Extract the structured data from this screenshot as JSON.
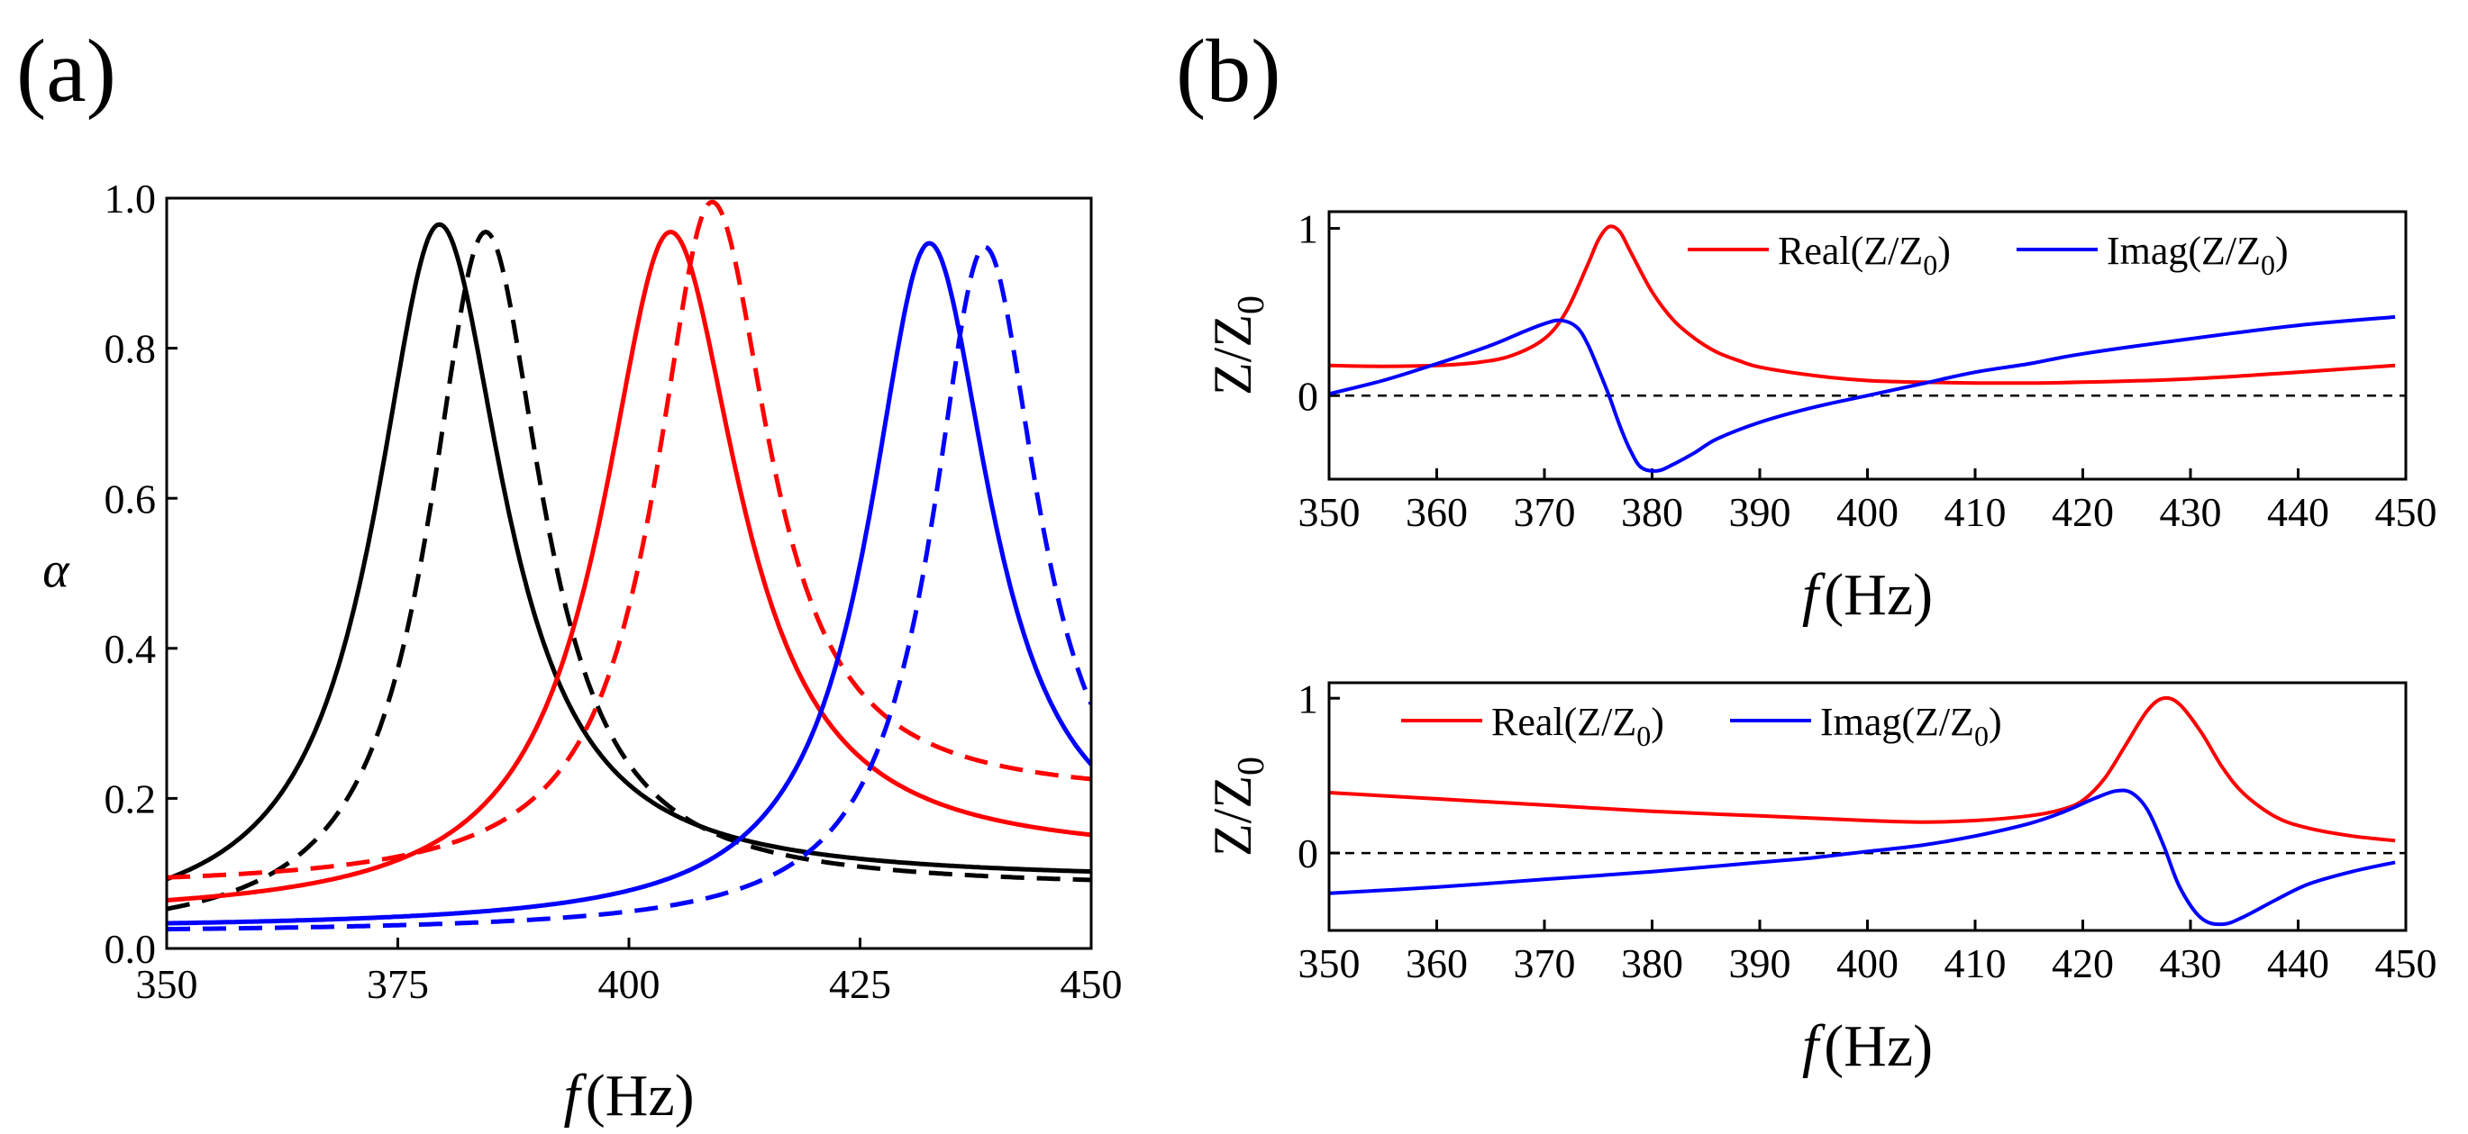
{
  "panels": {
    "a": {
      "label": "(a)"
    },
    "b": {
      "label": "(b)"
    }
  },
  "chart_data": [
    {
      "panel": "a",
      "type": "line",
      "xlabel_italic": "f",
      "xlabel_unit": "(Hz)",
      "ylabel": "α",
      "xlim": [
        350,
        450
      ],
      "ylim": [
        0.0,
        1.0
      ],
      "xticks": [
        "350",
        "375",
        "400",
        "425",
        "450"
      ],
      "yticks": [
        "0.0",
        "0.2",
        "0.4",
        "0.6",
        "0.8",
        "1.0"
      ],
      "legend": "none",
      "series": [
        {
          "color": "#000000",
          "dash": "solid",
          "f0": 379.5,
          "peak": 0.965,
          "gamma": 8.5,
          "base_left": 0.02,
          "base_right": 0.09
        },
        {
          "color": "#000000",
          "dash": "dashed",
          "f0": 384.5,
          "peak": 0.955,
          "gamma": 7.5,
          "base_left": 0.01,
          "base_right": 0.08
        },
        {
          "color": "#ff0000",
          "dash": "solid",
          "f0": 404.5,
          "peak": 0.955,
          "gamma": 9.0,
          "base_left": 0.04,
          "base_right": 0.12
        },
        {
          "color": "#ff0000",
          "dash": "dashed",
          "f0": 409.0,
          "peak": 0.995,
          "gamma": 7.5,
          "base_left": 0.08,
          "base_right": 0.2
        },
        {
          "color": "#0000ff",
          "dash": "solid",
          "f0": 432.5,
          "peak": 0.94,
          "gamma": 8.0,
          "base_left": 0.025,
          "base_right": 0.1
        },
        {
          "color": "#0000ff",
          "dash": "dashed",
          "f0": 438.5,
          "peak": 0.935,
          "gamma": 7.0,
          "base_left": 0.02,
          "base_right": 0.1
        }
      ]
    },
    {
      "panel": "b-top",
      "type": "line",
      "xlabel_italic": "f",
      "xlabel_unit": "(Hz)",
      "ylabel": "Z/Z",
      "ylabel_sub": "0",
      "xlim": [
        350,
        450
      ],
      "ylim": [
        -0.5,
        1.1
      ],
      "xticks": [
        "350",
        "360",
        "370",
        "380",
        "390",
        "400",
        "410",
        "420",
        "430",
        "440",
        "450"
      ],
      "yticks": [
        "0",
        "1"
      ],
      "legend": "top-right",
      "reference_line": 0,
      "series": [
        {
          "name": "Real(Z/Z",
          "name_sub": "0",
          "name_end": ")",
          "color": "#ff0000",
          "x": [
            350,
            355,
            360,
            364,
            367,
            370,
            372,
            374,
            375,
            376,
            377,
            378,
            380,
            382,
            384,
            386,
            388,
            390,
            395,
            400,
            405,
            410,
            415,
            420,
            430,
            440,
            449
          ],
          "y": [
            0.18,
            0.175,
            0.18,
            0.2,
            0.24,
            0.34,
            0.5,
            0.78,
            0.93,
            1.01,
            0.98,
            0.86,
            0.62,
            0.45,
            0.34,
            0.26,
            0.21,
            0.17,
            0.12,
            0.09,
            0.08,
            0.075,
            0.075,
            0.08,
            0.1,
            0.14,
            0.18
          ]
        },
        {
          "name": "Imag(Z/Z",
          "name_sub": "0",
          "name_end": ")",
          "color": "#0000ff",
          "x": [
            350,
            355,
            360,
            365,
            368,
            370,
            371.5,
            373,
            374,
            375,
            376,
            377,
            378,
            379,
            380.5,
            382,
            384,
            386,
            390,
            395,
            400,
            405,
            410,
            415,
            420,
            430,
            440,
            449
          ],
          "y": [
            0.01,
            0.09,
            0.19,
            0.3,
            0.38,
            0.43,
            0.45,
            0.41,
            0.31,
            0.16,
            0.0,
            -0.18,
            -0.33,
            -0.43,
            -0.45,
            -0.41,
            -0.34,
            -0.26,
            -0.16,
            -0.07,
            0.0,
            0.07,
            0.14,
            0.19,
            0.25,
            0.34,
            0.42,
            0.47
          ]
        }
      ]
    },
    {
      "panel": "b-bottom",
      "type": "line",
      "xlabel_italic": "f",
      "xlabel_unit": "(Hz)",
      "ylabel": "Z/Z",
      "ylabel_sub": "0",
      "xlim": [
        350,
        450
      ],
      "ylim": [
        -0.5,
        1.1
      ],
      "xticks": [
        "350",
        "360",
        "370",
        "380",
        "390",
        "400",
        "410",
        "420",
        "430",
        "440",
        "450"
      ],
      "yticks": [
        "0",
        "1"
      ],
      "legend": "top-left",
      "reference_line": 0,
      "series": [
        {
          "name": "Real(Z/Z",
          "name_sub": "0",
          "name_end": ")",
          "color": "#ff0000",
          "x": [
            350,
            360,
            370,
            380,
            390,
            400,
            405,
            410,
            415,
            418,
            420,
            422,
            424,
            426,
            427.5,
            429,
            431,
            433,
            435,
            438,
            441,
            445,
            449
          ],
          "y": [
            0.39,
            0.35,
            0.31,
            0.27,
            0.24,
            0.21,
            0.2,
            0.21,
            0.24,
            0.28,
            0.34,
            0.48,
            0.7,
            0.92,
            1.0,
            0.96,
            0.78,
            0.55,
            0.38,
            0.23,
            0.16,
            0.11,
            0.08
          ]
        },
        {
          "name": "Imag(Z/Z",
          "name_sub": "0",
          "name_end": ")",
          "color": "#0000ff",
          "x": [
            350,
            360,
            370,
            380,
            390,
            395,
            400,
            405,
            410,
            415,
            418,
            421,
            423,
            424.5,
            426,
            427.5,
            429,
            431,
            433,
            435,
            438,
            441,
            445,
            449
          ],
          "y": [
            -0.26,
            -0.22,
            -0.17,
            -0.12,
            -0.06,
            -0.03,
            0.01,
            0.05,
            0.11,
            0.19,
            0.26,
            0.35,
            0.4,
            0.39,
            0.28,
            0.05,
            -0.22,
            -0.42,
            -0.46,
            -0.41,
            -0.3,
            -0.2,
            -0.12,
            -0.06
          ]
        }
      ]
    }
  ]
}
